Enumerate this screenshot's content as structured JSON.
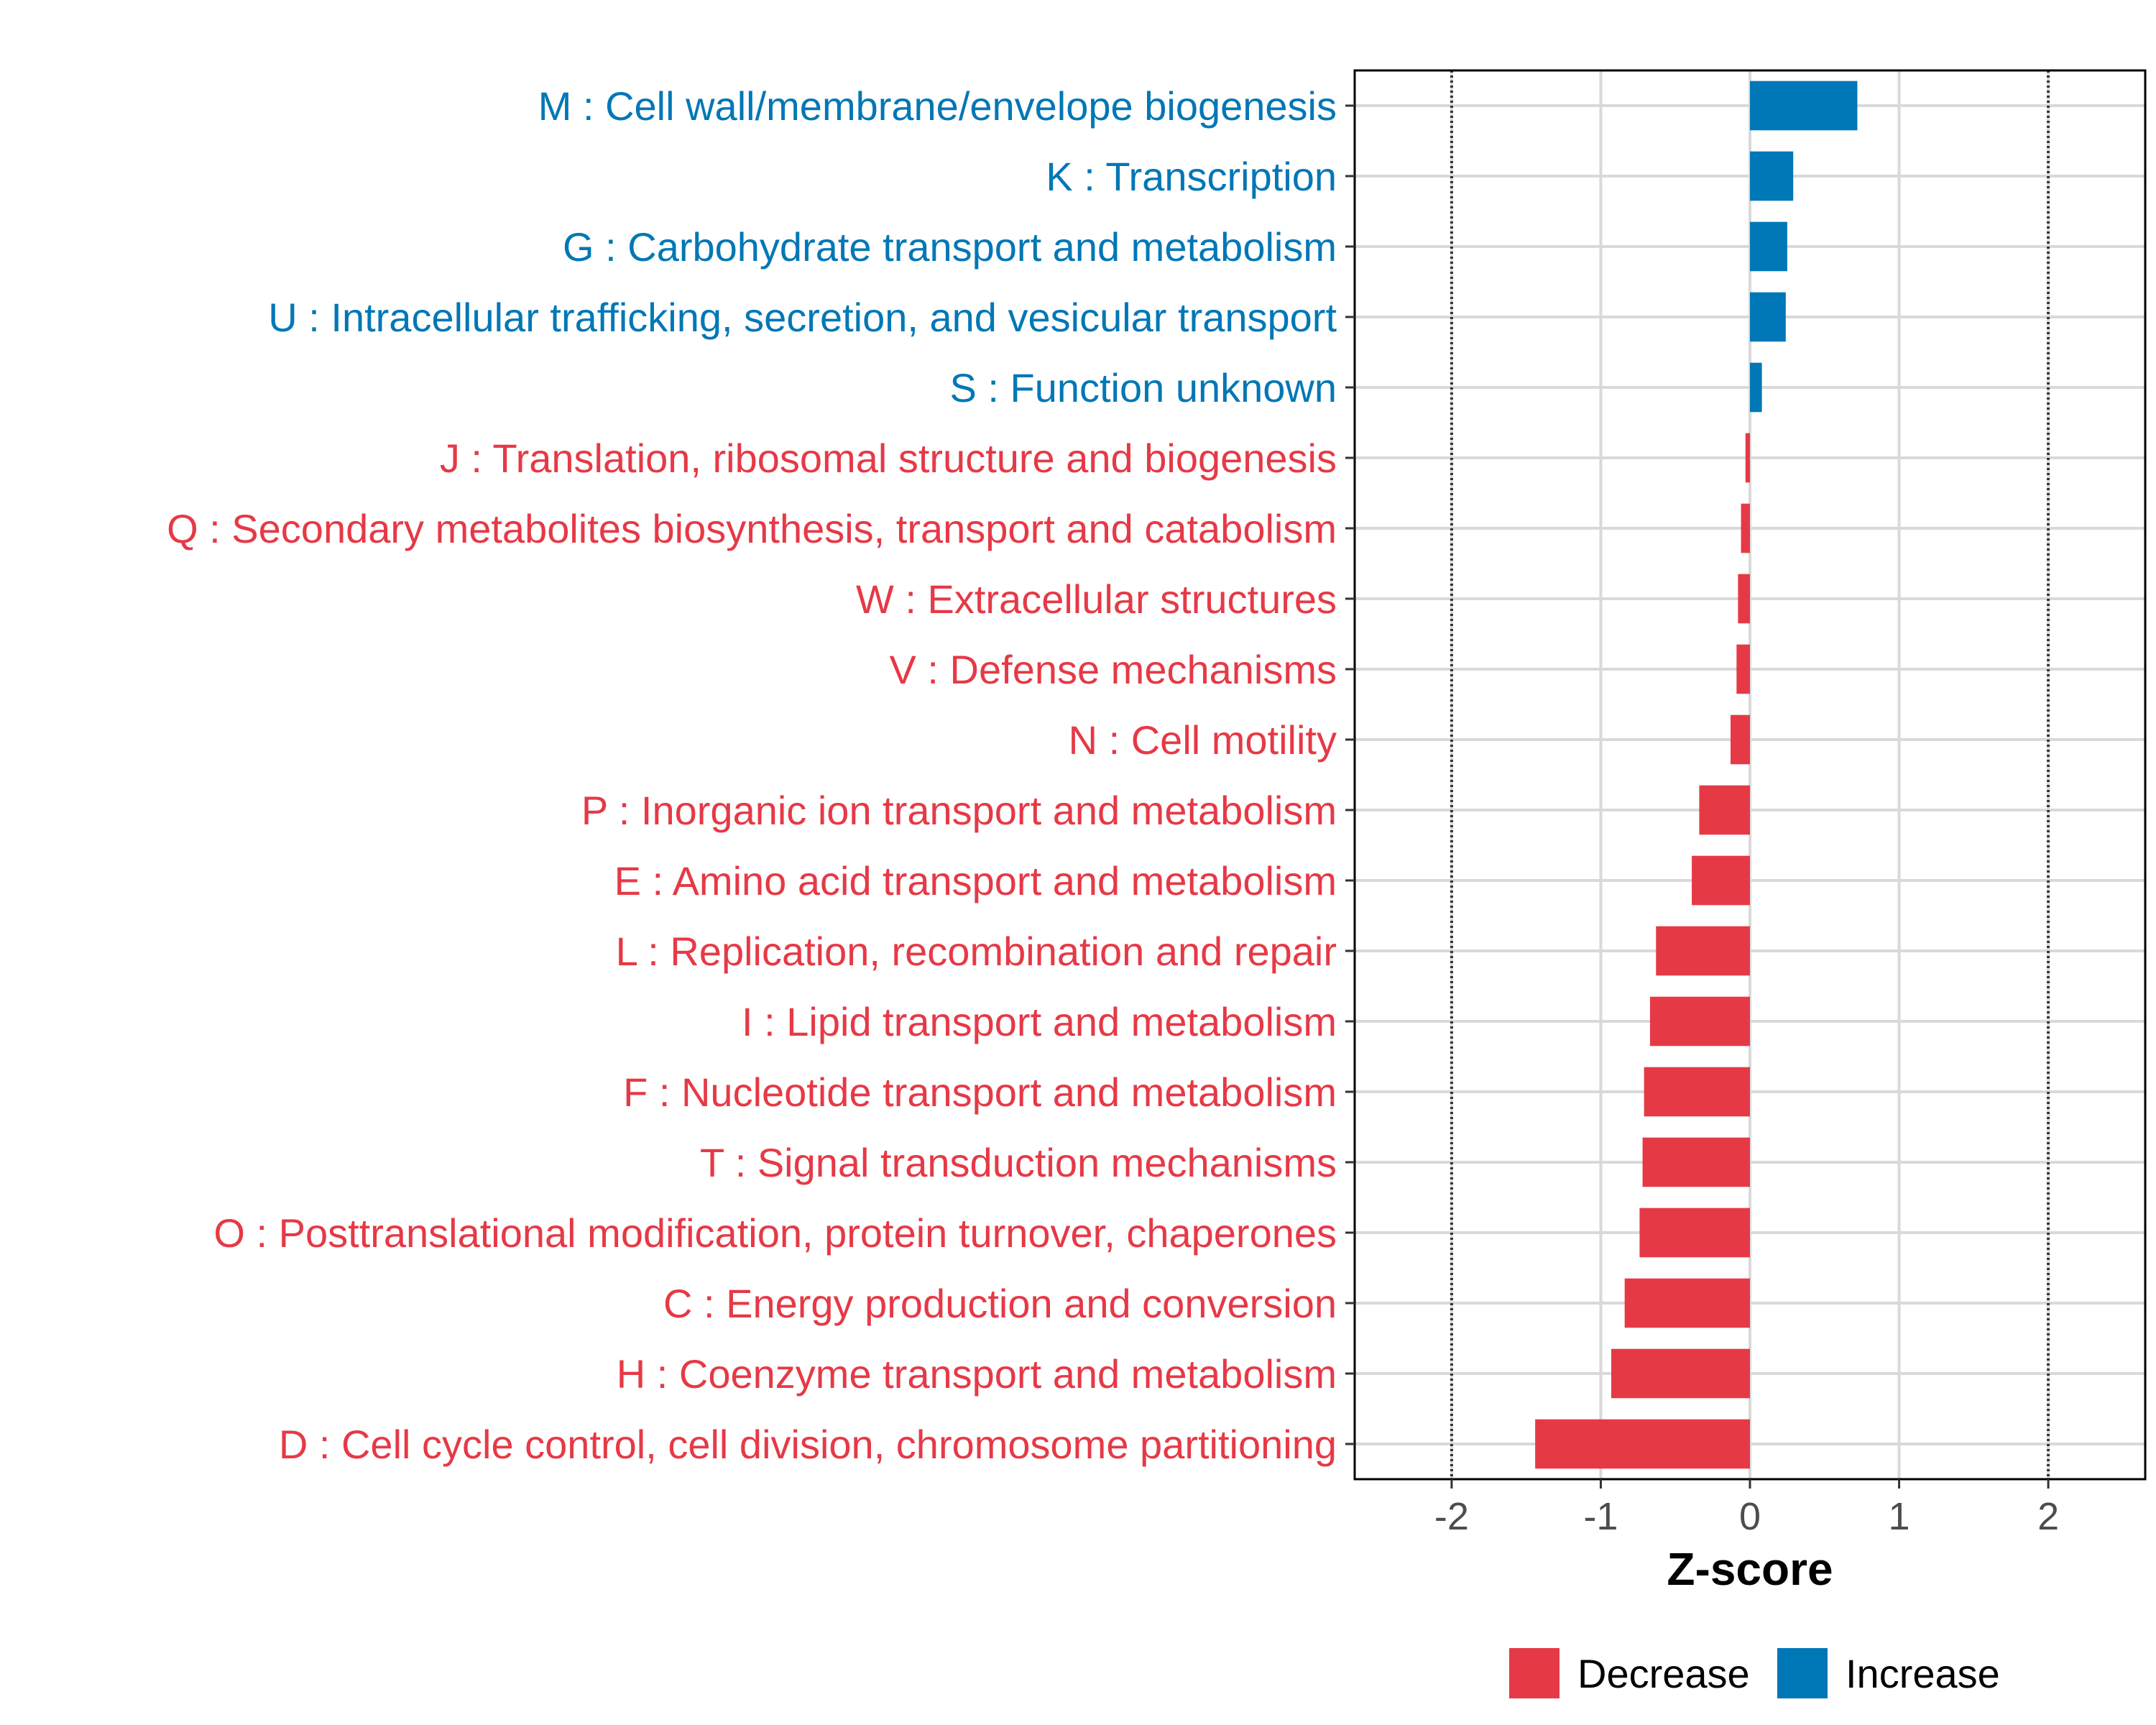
{
  "chart_data": {
    "type": "bar",
    "orientation": "horizontal",
    "title": "",
    "xlabel": "Z-score",
    "ylabel": "",
    "xlim": [
      -2.65,
      2.65
    ],
    "xticks": [
      -2,
      -1,
      0,
      1,
      2
    ],
    "xtick_labels": [
      "-2",
      "-1",
      "0",
      "1",
      "2"
    ],
    "reference_lines": [
      -2,
      2
    ],
    "grid": true,
    "legend_position": "bottom",
    "colors": {
      "Decrease": "#e63946",
      "Increase": "#0077b6"
    },
    "categories": [
      "M : Cell wall/membrane/envelope biogenesis",
      "K : Transcription",
      "G : Carbohydrate transport and metabolism",
      "U : Intracellular trafficking, secretion, and vesicular transport",
      "S : Function unknown",
      "J : Translation, ribosomal structure and biogenesis",
      "Q : Secondary metabolites biosynthesis, transport and catabolism",
      "W : Extracellular structures",
      "V : Defense mechanisms",
      "N : Cell motility",
      "P : Inorganic ion transport and metabolism",
      "E : Amino acid transport and metabolism",
      "L : Replication, recombination and repair",
      "I : Lipid transport and metabolism",
      "F : Nucleotide transport and metabolism",
      "T : Signal transduction mechanisms",
      "O : Posttranslational modification, protein turnover, chaperones",
      "C : Energy production and conversion",
      "H : Coenzyme transport and metabolism",
      "D : Cell cycle control, cell division, chromosome partitioning"
    ],
    "values": [
      0.72,
      0.29,
      0.25,
      0.24,
      0.08,
      -0.03,
      -0.06,
      -0.08,
      -0.09,
      -0.13,
      -0.34,
      -0.39,
      -0.63,
      -0.67,
      -0.71,
      -0.72,
      -0.74,
      -0.84,
      -0.93,
      -1.44
    ],
    "groups": [
      "Increase",
      "Increase",
      "Increase",
      "Increase",
      "Increase",
      "Decrease",
      "Decrease",
      "Decrease",
      "Decrease",
      "Decrease",
      "Decrease",
      "Decrease",
      "Decrease",
      "Decrease",
      "Decrease",
      "Decrease",
      "Decrease",
      "Decrease",
      "Decrease",
      "Decrease"
    ],
    "legend": [
      "Decrease",
      "Increase"
    ]
  }
}
